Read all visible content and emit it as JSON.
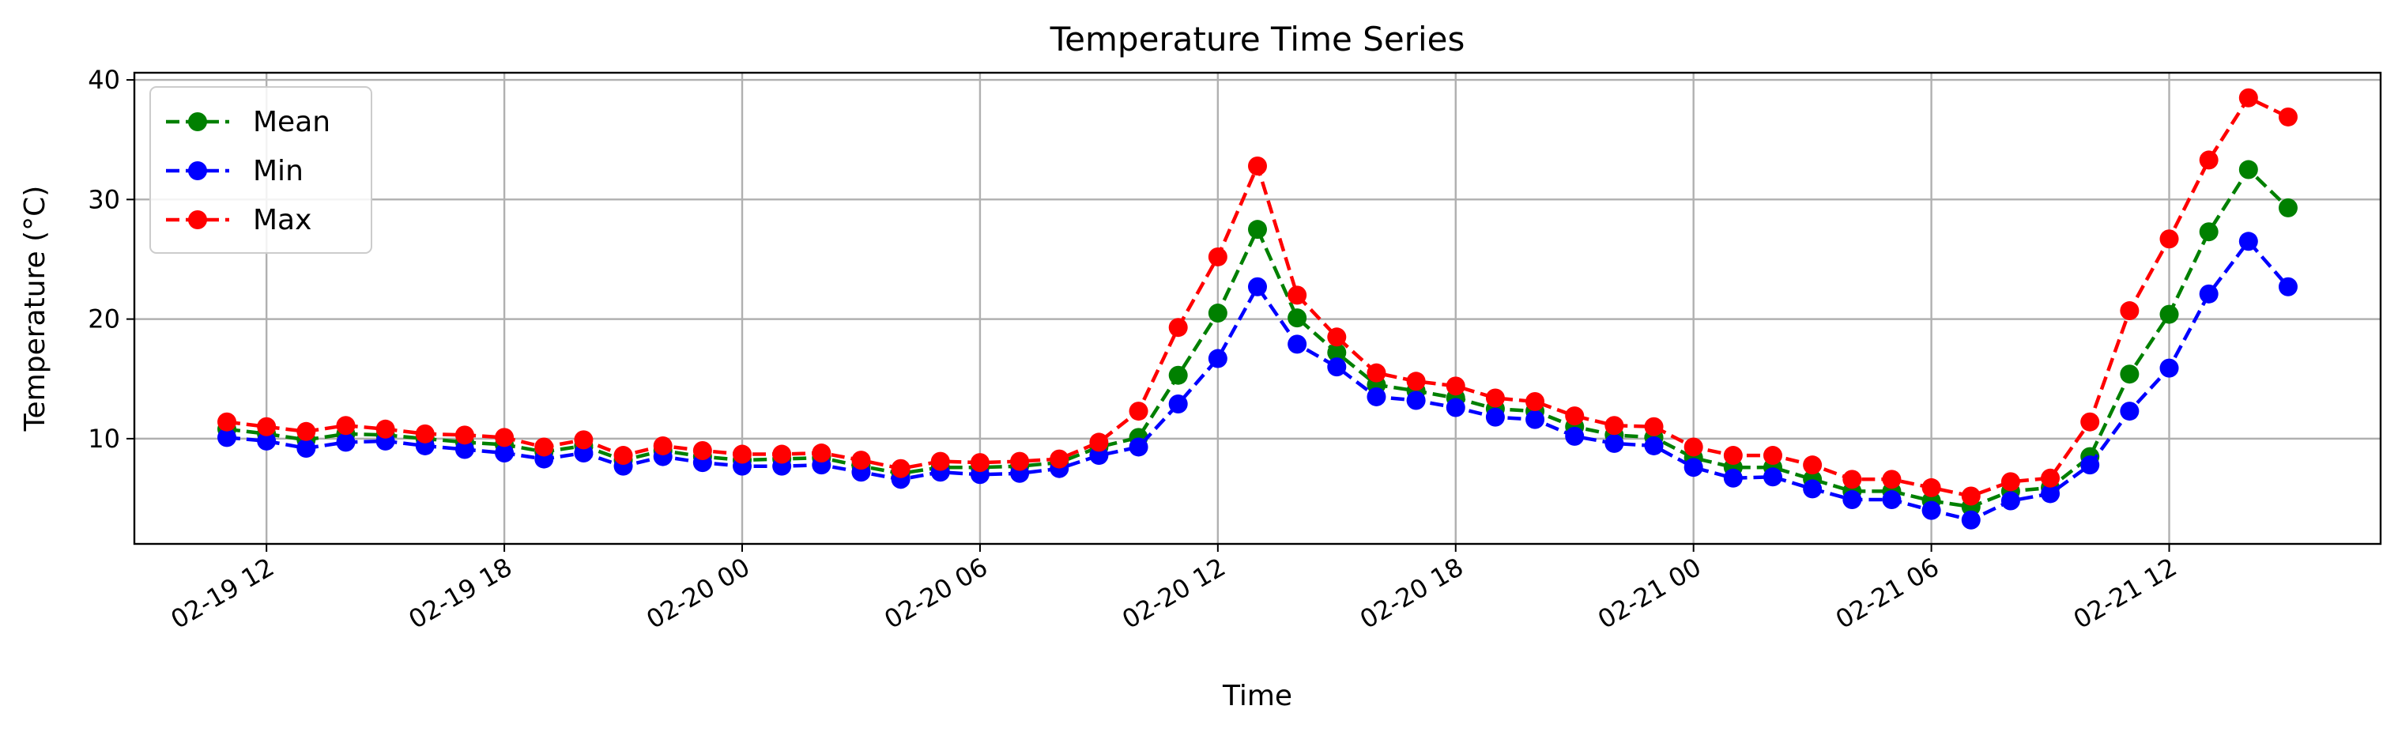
{
  "chart_data": {
    "type": "line",
    "title": "Temperature Time Series",
    "xlabel": "Time",
    "ylabel": "Temperature (°C)",
    "x_start": "2025-02-19 11:00",
    "x_step_hours": 1,
    "xlim": [
      "2025-02-19 08:40",
      "2025-02-21 17:20"
    ],
    "ylim": [
      1.2,
      40.6
    ],
    "yticks": [
      10,
      20,
      30,
      40
    ],
    "xticks": [
      {
        "time": "2025-02-19 12:00",
        "label": "02-19 12"
      },
      {
        "time": "2025-02-19 18:00",
        "label": "02-19 18"
      },
      {
        "time": "2025-02-20 00:00",
        "label": "02-20 00"
      },
      {
        "time": "2025-02-20 06:00",
        "label": "02-20 06"
      },
      {
        "time": "2025-02-20 12:00",
        "label": "02-20 12"
      },
      {
        "time": "2025-02-20 18:00",
        "label": "02-20 18"
      },
      {
        "time": "2025-02-21 00:00",
        "label": "02-21 00"
      },
      {
        "time": "2025-02-21 06:00",
        "label": "02-21 06"
      },
      {
        "time": "2025-02-21 12:00",
        "label": "02-21 12"
      }
    ],
    "grid": true,
    "legend_position": "top-left",
    "series": [
      {
        "name": "Mean",
        "color": "#008000",
        "values": [
          10.8,
          10.4,
          9.9,
          10.4,
          10.3,
          10.0,
          9.7,
          9.5,
          8.9,
          9.4,
          8.2,
          9.0,
          8.5,
          8.2,
          8.3,
          8.4,
          7.7,
          7.1,
          7.6,
          7.6,
          7.7,
          8.0,
          9.3,
          10.1,
          15.3,
          20.5,
          27.5,
          20.1,
          17.2,
          14.5,
          14.0,
          13.4,
          12.5,
          12.3,
          11.0,
          10.3,
          10.1,
          8.4,
          7.6,
          7.6,
          6.6,
          5.6,
          5.6,
          4.8,
          4.3,
          5.6,
          5.9,
          8.5,
          15.4,
          20.4,
          27.3,
          32.5,
          29.3
        ]
      },
      {
        "name": "Min",
        "color": "#0000ff",
        "values": [
          10.1,
          9.8,
          9.2,
          9.7,
          9.8,
          9.4,
          9.1,
          8.8,
          8.3,
          8.8,
          7.7,
          8.5,
          8.0,
          7.7,
          7.7,
          7.8,
          7.2,
          6.6,
          7.2,
          7.0,
          7.1,
          7.5,
          8.6,
          9.3,
          12.9,
          16.7,
          22.7,
          17.9,
          16.0,
          13.5,
          13.2,
          12.6,
          11.8,
          11.6,
          10.2,
          9.6,
          9.4,
          7.6,
          6.7,
          6.8,
          5.8,
          4.9,
          4.9,
          4.0,
          3.2,
          4.8,
          5.4,
          7.8,
          12.3,
          15.9,
          22.1,
          26.5,
          22.7
        ]
      },
      {
        "name": "Max",
        "color": "#ff0000",
        "values": [
          11.4,
          11.0,
          10.6,
          11.1,
          10.8,
          10.4,
          10.3,
          10.1,
          9.3,
          9.9,
          8.6,
          9.4,
          9.0,
          8.7,
          8.7,
          8.8,
          8.2,
          7.5,
          8.1,
          8.0,
          8.1,
          8.3,
          9.7,
          12.3,
          19.3,
          25.2,
          32.8,
          22.0,
          18.5,
          15.5,
          14.8,
          14.4,
          13.4,
          13.1,
          11.9,
          11.1,
          11.0,
          9.3,
          8.6,
          8.6,
          7.8,
          6.6,
          6.6,
          5.9,
          5.2,
          6.4,
          6.7,
          11.4,
          20.7,
          26.7,
          33.3,
          38.5,
          36.9
        ]
      }
    ]
  }
}
